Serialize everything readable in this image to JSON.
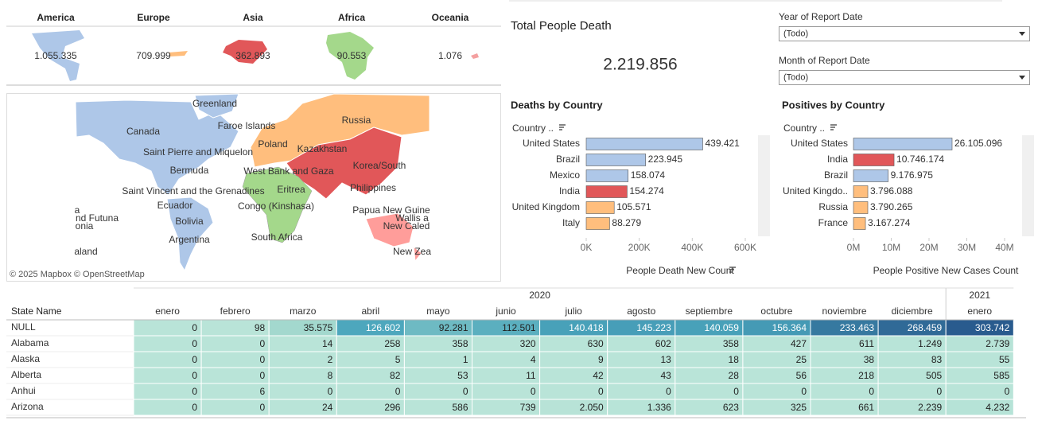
{
  "continents": [
    {
      "name": "America",
      "value": "1.055.335"
    },
    {
      "name": "Europe",
      "value": "709.999"
    },
    {
      "name": "Asia",
      "value": "362.893"
    },
    {
      "name": "Africa",
      "value": "90.553"
    },
    {
      "name": "Oceania",
      "value": "1.076"
    }
  ],
  "map": {
    "labels": [
      "Greenland",
      "Russia",
      "Canada",
      "Faroe Islands",
      "Poland",
      "Kazakhstan",
      "Saint Pierre and Miquelon",
      "Bermuda",
      "West Bank and Gaza",
      "Korea/South",
      "Saint Vincent and the Grenadines",
      "Eritrea",
      "Philippines",
      "Ecuador",
      "Congo (Kinshasa)",
      "Papua New Guine",
      "Wallis a",
      "New Caled",
      "a",
      "nd Futuna",
      "onia",
      "Bolivia",
      "Argentina",
      "South Africa",
      "aland",
      "New Zea"
    ],
    "attribution": "© 2025 Mapbox © OpenStreetMap"
  },
  "total": {
    "title": "Total People Death",
    "value": "2.219.856"
  },
  "filters": [
    {
      "label": "Year of Report Date",
      "value": "(Todo)"
    },
    {
      "label": "Month of Report Date",
      "value": "(Todo)"
    }
  ],
  "chart_data": [
    {
      "type": "bar",
      "orientation": "horizontal",
      "title": "Deaths by Country",
      "y_label": "Country ..",
      "x_label": "People Death New Count",
      "categories": [
        "United States",
        "Brazil",
        "Mexico",
        "India",
        "United Kingdom",
        "Italy"
      ],
      "values": [
        439421,
        223945,
        158074,
        154274,
        105571,
        88279
      ],
      "value_labels": [
        "439.421",
        "223.945",
        "158.074",
        "154.274",
        "105.571",
        "88.279"
      ],
      "colors": [
        "#aec7e8",
        "#aec7e8",
        "#aec7e8",
        "#e15759",
        "#ffbe7d",
        "#ffbe7d"
      ],
      "xlim": [
        0,
        600000
      ],
      "xticks": [
        {
          "value": 0,
          "label": "0K"
        },
        {
          "value": 200000,
          "label": "200K"
        },
        {
          "value": 400000,
          "label": "400K"
        },
        {
          "value": 600000,
          "label": "600K"
        }
      ]
    },
    {
      "type": "bar",
      "orientation": "horizontal",
      "title": "Positives by Country",
      "y_label": "Country ..",
      "x_label": "People Positive New Cases Count",
      "categories": [
        "United States",
        "India",
        "Brazil",
        "United Kingdo..",
        "Russia",
        "France"
      ],
      "values": [
        26105096,
        10746174,
        9176975,
        3796088,
        3790265,
        3167274
      ],
      "value_labels": [
        "26.105.096",
        "10.746.174",
        "9.176.975",
        "3.796.088",
        "3.790.265",
        "3.167.274"
      ],
      "colors": [
        "#aec7e8",
        "#e15759",
        "#aec7e8",
        "#ffbe7d",
        "#ffbe7d",
        "#ffbe7d"
      ],
      "xlim": [
        0,
        40000000
      ],
      "xticks": [
        {
          "value": 0,
          "label": "0M"
        },
        {
          "value": 10000000,
          "label": "10M"
        },
        {
          "value": 20000000,
          "label": "20M"
        },
        {
          "value": 30000000,
          "label": "30M"
        },
        {
          "value": 40000000,
          "label": "40M"
        }
      ]
    }
  ],
  "table": {
    "row_header": "State Name",
    "years": [
      {
        "label": "2020",
        "months": [
          "enero",
          "febrero",
          "marzo",
          "abril",
          "mayo",
          "junio",
          "julio",
          "agosto",
          "septiembre",
          "octubre",
          "noviembre",
          "diciembre"
        ]
      },
      {
        "label": "2021",
        "months": [
          "enero"
        ]
      }
    ],
    "rows": [
      {
        "name": "NULL",
        "cells": [
          "0",
          "98",
          "35.575",
          "126.602",
          "92.281",
          "112.501",
          "140.418",
          "145.223",
          "140.059",
          "156.364",
          "233.463",
          "268.459",
          "303.742"
        ]
      },
      {
        "name": "Alabama",
        "cells": [
          "0",
          "0",
          "14",
          "258",
          "358",
          "320",
          "630",
          "602",
          "358",
          "427",
          "611",
          "1.249",
          "2.739"
        ]
      },
      {
        "name": "Alaska",
        "cells": [
          "0",
          "0",
          "2",
          "5",
          "1",
          "4",
          "9",
          "13",
          "18",
          "25",
          "38",
          "83",
          "55"
        ]
      },
      {
        "name": "Alberta",
        "cells": [
          "0",
          "0",
          "8",
          "82",
          "53",
          "11",
          "42",
          "43",
          "28",
          "56",
          "218",
          "505",
          "585"
        ]
      },
      {
        "name": "Anhui",
        "cells": [
          "0",
          "6",
          "0",
          "0",
          "0",
          "0",
          "0",
          "0",
          "0",
          "0",
          "0",
          "0",
          "0"
        ]
      },
      {
        "name": "Arizona",
        "cells": [
          "0",
          "0",
          "24",
          "296",
          "586",
          "739",
          "2.050",
          "1.336",
          "623",
          "325",
          "661",
          "2.239",
          "4.232"
        ]
      }
    ]
  }
}
